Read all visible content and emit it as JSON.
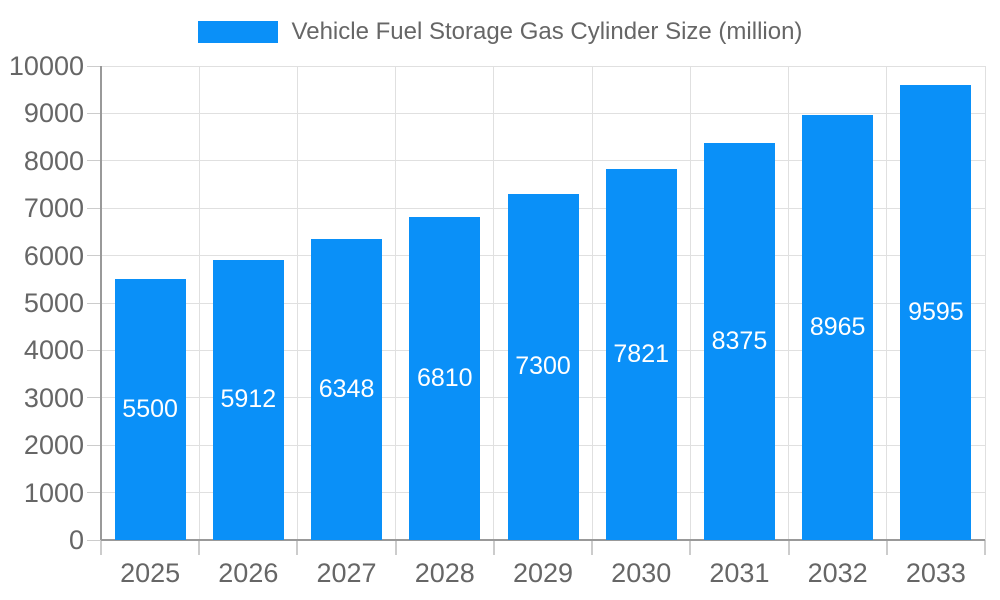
{
  "chart_data": {
    "type": "bar",
    "title": "Vehicle Fuel Storage Gas Cylinder Size (million)",
    "legend_position": "top-center",
    "legend": [
      {
        "label": "Vehicle Fuel Storage Gas Cylinder Size (million)",
        "color": "#0a90f8"
      }
    ],
    "categories": [
      "2025",
      "2026",
      "2027",
      "2028",
      "2029",
      "2030",
      "2031",
      "2032",
      "2033"
    ],
    "values": [
      5500,
      5912,
      6348,
      6810,
      7300,
      7821,
      8375,
      8965,
      9595
    ],
    "xlabel": "",
    "ylabel": "",
    "ylim": [
      0,
      10000
    ],
    "ytick_step": 1000,
    "y_ticks": [
      "0",
      "1000",
      "2000",
      "3000",
      "4000",
      "5000",
      "6000",
      "7000",
      "8000",
      "9000",
      "10000"
    ],
    "grid": true,
    "bar_labels_inside": true,
    "colors": {
      "bar": "#0a90f8",
      "bar_label": "#ffffff",
      "axis": "#999999",
      "gridline": "#e0e0e0",
      "tick": "#cccccc",
      "text": "#666666",
      "background": "#ffffff"
    }
  }
}
